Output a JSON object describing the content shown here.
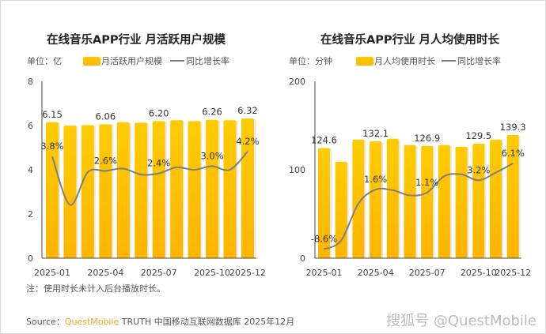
{
  "chart_data": [
    {
      "type": "bar",
      "title": "在线音乐APP行业 月活跃用户规模",
      "unit_label": "单位：亿",
      "categories": [
        "2025-01",
        "2025-02",
        "2025-03",
        "2025-04",
        "2025-05",
        "2025-06",
        "2025-07",
        "2025-08",
        "2025-09",
        "2025-10",
        "2025-11",
        "2025-12"
      ],
      "tick_labels": [
        "2025-01",
        "2025-04",
        "2025-07",
        "2025-10",
        "2025-12"
      ],
      "tick_indices": [
        0,
        3,
        6,
        9,
        11
      ],
      "ylim": [
        0,
        8
      ],
      "yticks": [
        "0",
        "2",
        "4",
        "6",
        "8"
      ],
      "y2lim": [
        -4.6,
        10
      ],
      "series": [
        {
          "name": "月活跃用户规模",
          "type": "bar",
          "values": [
            6.15,
            6.0,
            6.02,
            6.06,
            6.15,
            6.13,
            6.2,
            6.24,
            6.2,
            6.26,
            6.24,
            6.32
          ],
          "labels": {
            "0": "6.15",
            "3": "6.06",
            "6": "6.20",
            "9": "6.26",
            "11": "6.32"
          }
        },
        {
          "name": "同比增长率",
          "type": "line",
          "values": [
            3.8,
            -0.2,
            2.5,
            2.6,
            2.8,
            2.3,
            2.4,
            2.9,
            2.7,
            3.0,
            2.7,
            4.2
          ],
          "labels": {
            "0": "3.8%",
            "3": "2.6%",
            "6": "2.4%",
            "9": "3.0%",
            "11": "4.2%"
          }
        }
      ],
      "legend": "top"
    },
    {
      "type": "bar",
      "title": "在线音乐APP行业 月人均使用时长",
      "unit_label": "单位：分钟",
      "categories": [
        "2025-01",
        "2025-02",
        "2025-03",
        "2025-04",
        "2025-05",
        "2025-06",
        "2025-07",
        "2025-08",
        "2025-09",
        "2025-10",
        "2025-11",
        "2025-12"
      ],
      "tick_labels": [
        "2025-01",
        "2025-04",
        "2025-07",
        "2025-10",
        "2025-12"
      ],
      "tick_indices": [
        0,
        3,
        6,
        9,
        11
      ],
      "ylim": [
        0,
        200
      ],
      "yticks": [
        "0",
        "100",
        "200"
      ],
      "y2lim": [
        -10.15,
        20.15
      ],
      "series": [
        {
          "name": "月人均使用时长",
          "type": "bar",
          "values": [
            124.6,
            109,
            134,
            132.1,
            135,
            128,
            126.9,
            128,
            126,
            129.5,
            134,
            139.3
          ],
          "labels": {
            "0": "124.6",
            "3": "132.1",
            "6": "126.9",
            "9": "129.5",
            "11": "139.3"
          }
        },
        {
          "name": "同比增长率",
          "type": "line",
          "values": [
            -8.6,
            -7.1,
            -0.8,
            1.6,
            1.5,
            0.6,
            1.1,
            3.9,
            4.2,
            3.2,
            4.5,
            6.1
          ],
          "labels": {
            "0": "-8.6%",
            "3": "1.6%",
            "6": "1.1%",
            "9": "3.2%",
            "11": "6.1%"
          }
        }
      ],
      "legend": "top"
    }
  ],
  "footer": {
    "note": "注：使用时长未计入后台播放时长。",
    "source_prefix": "Source：",
    "source_brand": "QuestMobile",
    "source_rest": " TRUTH 中国移动互联网数据库 2025年12月",
    "watermark": "搜狐号 @QuestMobile"
  },
  "colors": {
    "bar_top": "#FFCC00",
    "bar_bottom": "#FFB300",
    "line": "#7f7f7f",
    "brand": "#F5A623"
  }
}
